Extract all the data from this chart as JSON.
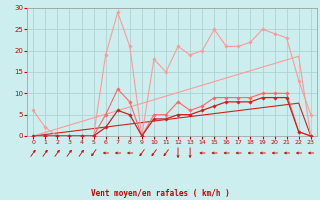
{
  "x": [
    0,
    1,
    2,
    3,
    4,
    5,
    6,
    7,
    8,
    9,
    10,
    11,
    12,
    13,
    14,
    15,
    16,
    17,
    18,
    19,
    20,
    21,
    22,
    23
  ],
  "series": [
    {
      "name": "rafales_max",
      "color": "#ff9999",
      "linewidth": 0.8,
      "marker": "D",
      "markersize": 1.8,
      "y": [
        6,
        2,
        0,
        0,
        0,
        0,
        19,
        29,
        21,
        0,
        18,
        15,
        21,
        19,
        20,
        25,
        21,
        21,
        22,
        25,
        24,
        23,
        13,
        5
      ]
    },
    {
      "name": "rafales_moy",
      "color": "#ff6666",
      "linewidth": 0.8,
      "marker": "D",
      "markersize": 1.8,
      "y": [
        0,
        0,
        0,
        0,
        0,
        0,
        5,
        11,
        8,
        0,
        5,
        5,
        8,
        6,
        7,
        9,
        9,
        9,
        9,
        10,
        10,
        10,
        1,
        0
      ]
    },
    {
      "name": "vent_max",
      "color": "#cc2222",
      "linewidth": 0.9,
      "marker": "D",
      "markersize": 1.8,
      "y": [
        0,
        0,
        0,
        0,
        0,
        0,
        2,
        6,
        5,
        0,
        4,
        4,
        5,
        5,
        6,
        7,
        8,
        8,
        8,
        9,
        9,
        9,
        1,
        0
      ]
    },
    {
      "name": "vent_moy_trend1",
      "color": "#cc2222",
      "linewidth": 0.8,
      "marker": null,
      "markersize": 0,
      "y": [
        0,
        0.35,
        0.7,
        1.05,
        1.4,
        1.75,
        2.1,
        2.45,
        2.8,
        3.15,
        3.5,
        3.85,
        4.2,
        4.55,
        4.9,
        5.25,
        5.6,
        5.95,
        6.3,
        6.65,
        7.0,
        7.35,
        7.7,
        0
      ]
    },
    {
      "name": "vent_moy_trend2",
      "color": "#ff9999",
      "linewidth": 0.8,
      "marker": null,
      "markersize": 0,
      "y": [
        0,
        0.85,
        1.7,
        2.55,
        3.4,
        4.25,
        5.1,
        5.95,
        6.8,
        7.65,
        8.5,
        9.35,
        10.2,
        11.05,
        11.9,
        12.75,
        13.6,
        14.45,
        15.3,
        16.15,
        17.0,
        17.85,
        18.7,
        0
      ]
    }
  ],
  "wind_dirs": [
    45,
    45,
    45,
    45,
    45,
    225,
    270,
    270,
    270,
    225,
    225,
    225,
    180,
    180,
    270,
    270,
    270,
    270,
    270,
    270,
    270,
    270,
    270,
    270
  ],
  "xlabel": "Vent moyen/en rafales ( km/h )",
  "xlim": [
    -0.5,
    23.5
  ],
  "ylim": [
    0,
    30
  ],
  "yticks": [
    0,
    5,
    10,
    15,
    20,
    25,
    30
  ],
  "xticks": [
    0,
    1,
    2,
    3,
    4,
    5,
    6,
    7,
    8,
    9,
    10,
    11,
    12,
    13,
    14,
    15,
    16,
    17,
    18,
    19,
    20,
    21,
    22,
    23
  ],
  "bg_color": "#cceeee",
  "grid_color": "#aacccc",
  "text_color": "#cc0000"
}
